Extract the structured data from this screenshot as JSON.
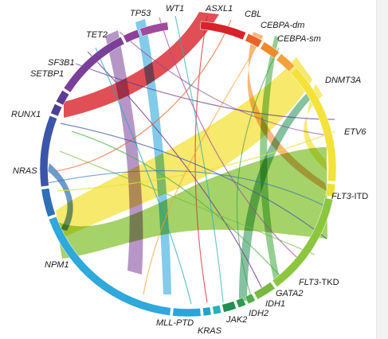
{
  "genes": [
    {
      "name": "ASXL1",
      "color": "#d8232a"
    },
    {
      "name": "CBL",
      "color": "#e8632a"
    },
    {
      "name": "CEBPA-dm",
      "color": "#f08a2b"
    },
    {
      "name": "CEBPA-sm",
      "color": "#f5a23a"
    },
    {
      "name": "DNMT3A",
      "color": "#f3e23a"
    },
    {
      "name": "ETV6",
      "color": "#e9e234"
    },
    {
      "name": "FLT3-ITD",
      "color": "#8cc63f"
    },
    {
      "name": "FLT3-TKD",
      "color": "#7ab940"
    },
    {
      "name": "GATA2",
      "color": "#4fae49"
    },
    {
      "name": "IDH1",
      "color": "#2f9a4a"
    },
    {
      "name": "IDH2",
      "color": "#1f8f52"
    },
    {
      "name": "JAK2",
      "color": "#2ab0b9"
    },
    {
      "name": "KRAS",
      "color": "#1ea5c8"
    },
    {
      "name": "MLL-PTD",
      "color": "#28a6d8"
    },
    {
      "name": "NPM1",
      "color": "#2fa8dc"
    },
    {
      "name": "NRAS",
      "color": "#2f6fb7"
    },
    {
      "name": "RUNX1",
      "color": "#3b55a8"
    },
    {
      "name": "SETBP1",
      "color": "#4b3f98"
    },
    {
      "name": "SF3B1",
      "color": "#5b3b94"
    },
    {
      "name": "TET2",
      "color": "#7a3f98"
    },
    {
      "name": "TP53",
      "color": "#8e3f9b"
    },
    {
      "name": "WT1",
      "color": "#a04a9e"
    }
  ],
  "labels": {
    "ASXL1": "ASXL1",
    "CBL": "CBL",
    "CEBPA_dm": "CEBPA-dm",
    "CEBPA_sm": "CEBPA-sm",
    "DNMT3A": "DNMT3A",
    "ETV6": "ETV6",
    "FLT3_ITD_a": "FLT3",
    "FLT3_ITD_b": "-ITD",
    "FLT3_TKD_a": "FLT3",
    "FLT3_TKD_b": "-TKD",
    "GATA2": "GATA2",
    "IDH1": "IDH1",
    "IDH2": "IDH2",
    "JAK2": "JAK2",
    "KRAS": "KRAS",
    "MLL_PTD": "MLL-PTD",
    "NPM1": "NPM1",
    "NRAS": "NRAS",
    "RUNX1": "RUNX1",
    "SETBP1": "SETBP1",
    "SF3B1": "SF3B1",
    "TET2": "TET2",
    "TP53": "TP53",
    "WT1": "WT1"
  },
  "links": [
    {
      "from": "NPM1",
      "to": "FLT3-ITD",
      "weight": 5
    },
    {
      "from": "DNMT3A",
      "to": "NPM1",
      "weight": 4
    },
    {
      "from": "DNMT3A",
      "to": "FLT3-ITD",
      "weight": 3
    },
    {
      "from": "NPM1",
      "to": "TET2",
      "weight": 2
    },
    {
      "from": "ASXL1",
      "to": "RUNX1",
      "weight": 2
    },
    {
      "from": "NRAS",
      "to": "NPM1",
      "weight": 2
    },
    {
      "from": "IDH2",
      "to": "DNMT3A",
      "weight": 2
    },
    {
      "from": "IDH1",
      "to": "NPM1",
      "weight": 1
    },
    {
      "from": "ASXL1",
      "to": "TET2",
      "weight": 1
    },
    {
      "from": "CEBPA-sm",
      "to": "DNMT3A",
      "weight": 1
    },
    {
      "from": "RUNX1",
      "to": "FLT3-ITD",
      "weight": 1
    },
    {
      "from": "GATA2",
      "to": "CEBPA-dm",
      "weight": 1
    },
    {
      "from": "KRAS",
      "to": "NPM1",
      "weight": 1
    },
    {
      "from": "FLT3-TKD",
      "to": "NPM1",
      "weight": 1
    },
    {
      "from": "ETV6",
      "to": "DNMT3A",
      "weight": 1
    },
    {
      "from": "SF3B1",
      "to": "DNMT3A",
      "weight": 1
    },
    {
      "from": "TP53",
      "to": "DNMT3A",
      "weight": 1
    },
    {
      "from": "WT1",
      "to": "FLT3-ITD",
      "weight": 1
    },
    {
      "from": "MLL-PTD",
      "to": "DNMT3A",
      "weight": 1
    },
    {
      "from": "JAK2",
      "to": "ASXL1",
      "weight": 1
    },
    {
      "from": "SETBP1",
      "to": "ASXL1",
      "weight": 1
    },
    {
      "from": "CBL",
      "to": "NRAS",
      "weight": 1
    },
    {
      "from": "TET2",
      "to": "FLT3-ITD",
      "weight": 1
    },
    {
      "from": "RUNX1",
      "to": "NPM1",
      "weight": 1
    }
  ]
}
